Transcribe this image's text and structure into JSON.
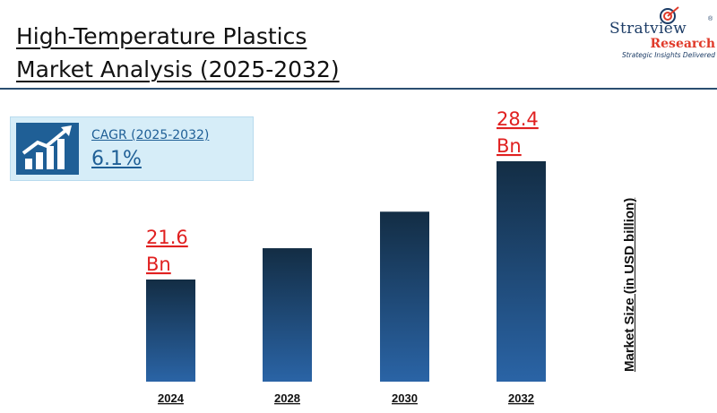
{
  "title_lines": [
    "High-Temperature Plastics",
    "Market Analysis (2025-2032)"
  ],
  "logo": {
    "name": "Stratview",
    "registered": "®",
    "sub": "Research",
    "tagline": "Strategic Insights Delivered"
  },
  "cagr": {
    "label": "CAGR (2025-2032)",
    "value": "6.1%",
    "icon": "growth-chart-icon"
  },
  "colors": {
    "bar_top": "#132d44",
    "bar_bottom": "#2a64a6",
    "callout": "#e02020",
    "cagr_text": "#1f5f96",
    "cagr_bg": "#d6edf8"
  },
  "chart_data": {
    "type": "bar",
    "categories": [
      "2024",
      "2028",
      "2030",
      "2032"
    ],
    "values": [
      21.6,
      23.4,
      25.5,
      28.4
    ],
    "ylabel": "Market Size (in USD billion)",
    "xlabel": "",
    "title": "",
    "annotations": [
      {
        "category": "2024",
        "lines": [
          "21.6",
          "Bn"
        ]
      },
      {
        "category": "2032",
        "lines": [
          "28.4",
          "Bn"
        ]
      }
    ],
    "grid": false,
    "legend": "none"
  }
}
